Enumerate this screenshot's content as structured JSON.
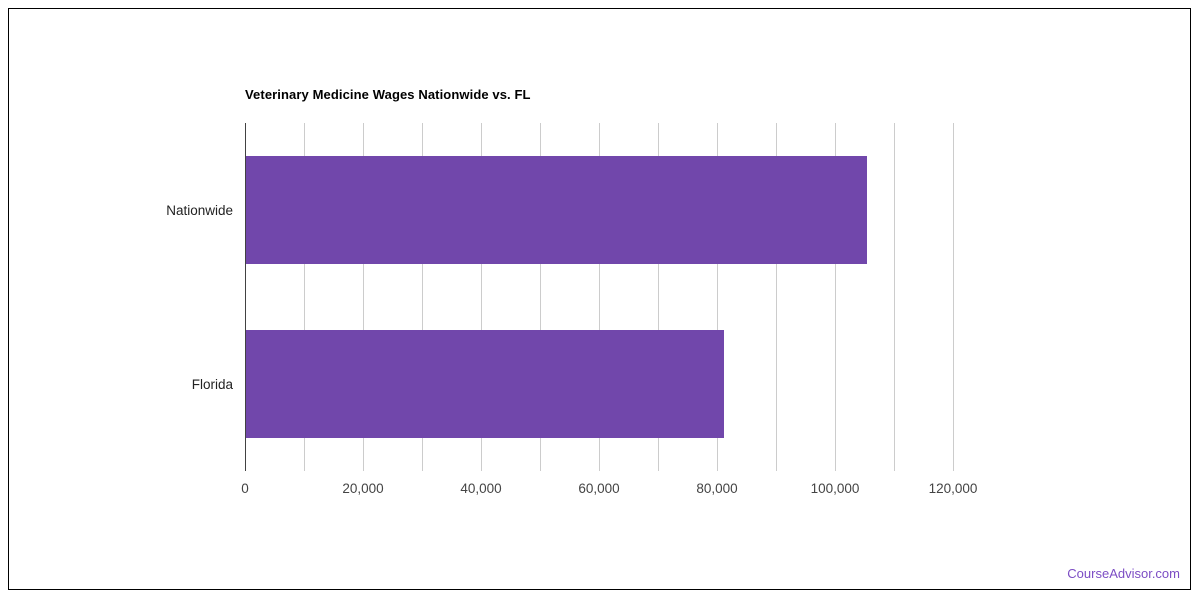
{
  "page": {
    "background": "#ffffff",
    "frame_border_color": "#000000"
  },
  "chart_data": {
    "type": "bar",
    "orientation": "horizontal",
    "title": "Veterinary Medicine Wages Nationwide vs. FL",
    "categories": [
      "Nationwide",
      "Florida"
    ],
    "values": [
      105250,
      81000
    ],
    "xlabel": "",
    "ylabel": "",
    "xlim": [
      0,
      120000
    ],
    "gridline_step": 10000,
    "x_tick_step": 20000,
    "x_tick_labels": [
      "0",
      "20,000",
      "40,000",
      "60,000",
      "80,000",
      "100,000",
      "120,000"
    ],
    "grid": true,
    "legend": false,
    "colors": {
      "bar": "#7147ab",
      "gridline": "#cccccc",
      "axis_line": "#424242",
      "tick_label": "#444444",
      "category_label": "#222222",
      "title": "#000000"
    }
  },
  "footer": {
    "link_text": "CourseAdvisor.com",
    "link_color": "#7c4dc4"
  }
}
